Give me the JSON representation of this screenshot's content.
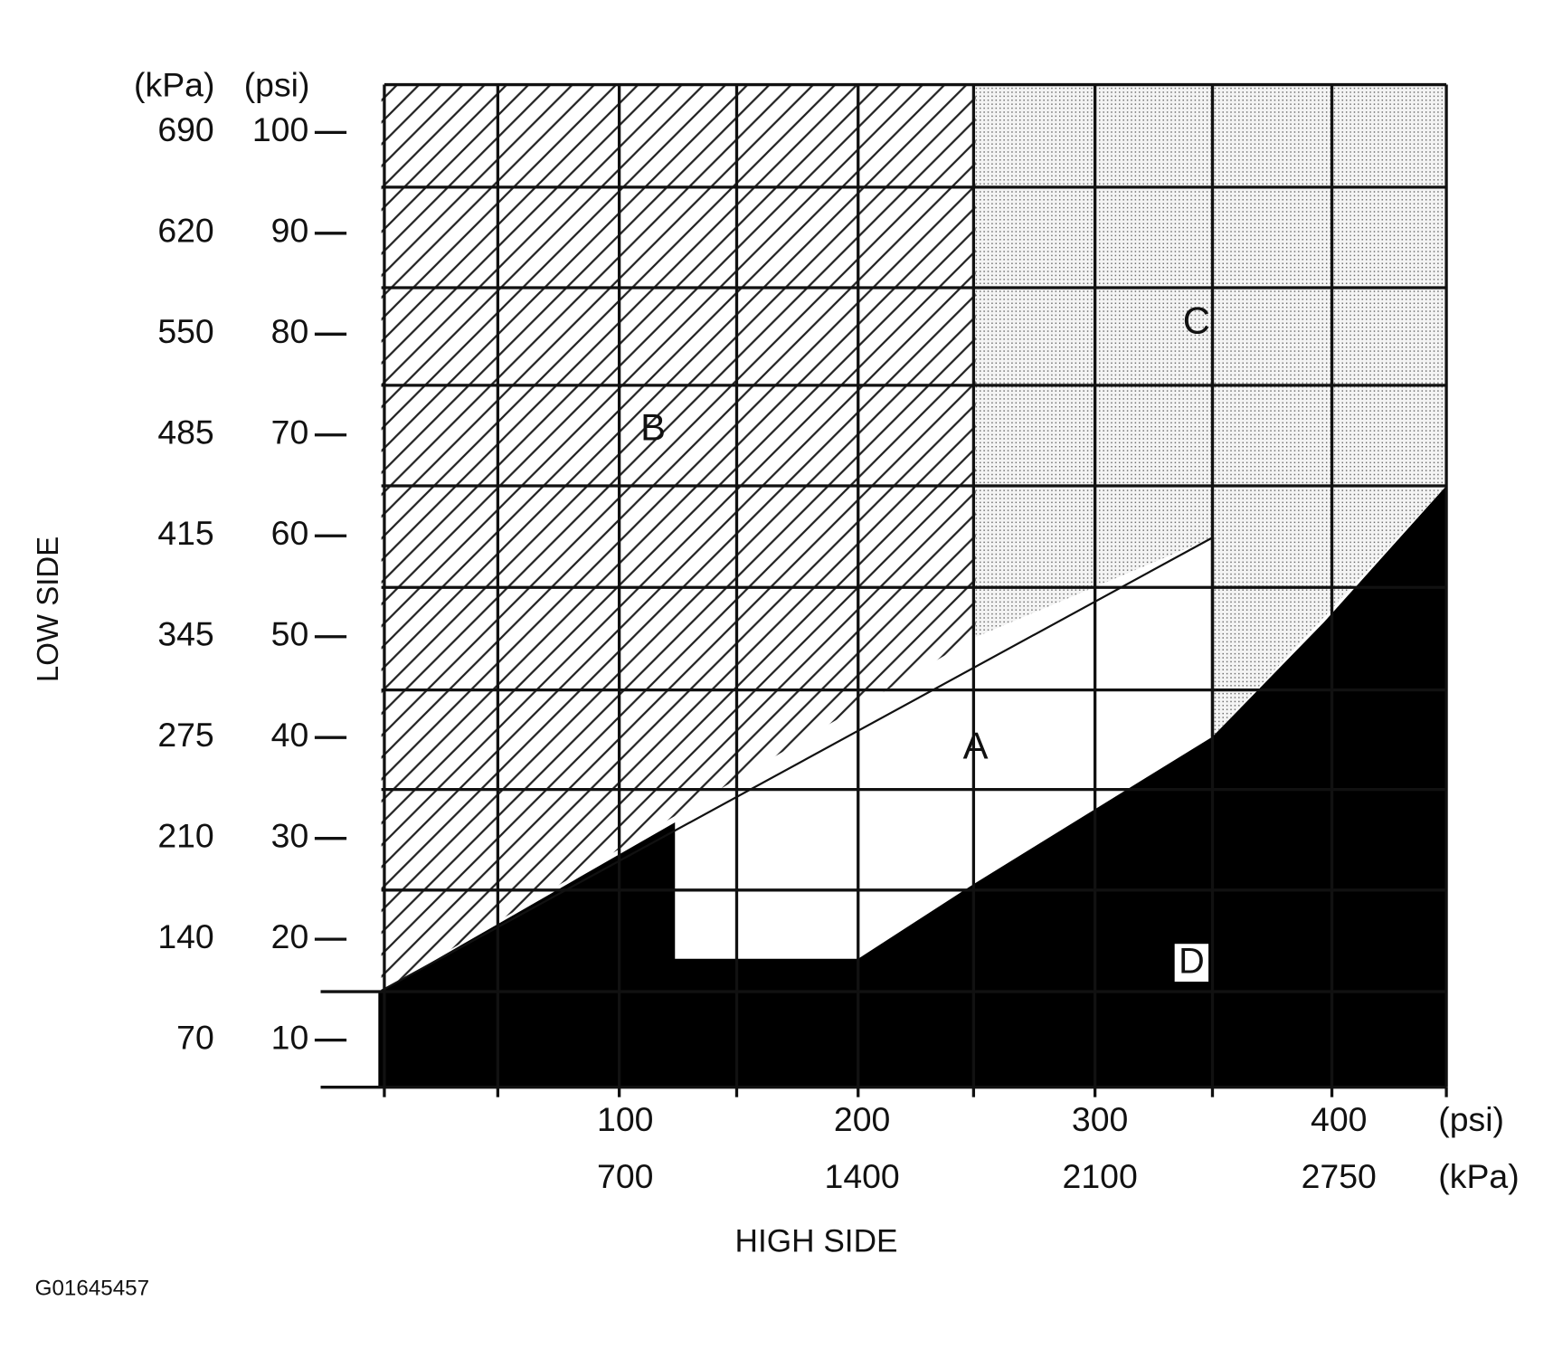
{
  "y_axis": {
    "title": "LOW SIDE",
    "unit_labels": [
      "(kPa)",
      "(psi)"
    ],
    "ticks": [
      {
        "kpa": "690",
        "psi": "100"
      },
      {
        "kpa": "620",
        "psi": "90"
      },
      {
        "kpa": "550",
        "psi": "80"
      },
      {
        "kpa": "485",
        "psi": "70"
      },
      {
        "kpa": "415",
        "psi": "60"
      },
      {
        "kpa": "345",
        "psi": "50"
      },
      {
        "kpa": "275",
        "psi": "40"
      },
      {
        "kpa": "210",
        "psi": "30"
      },
      {
        "kpa": "140",
        "psi": "20"
      },
      {
        "kpa": "70",
        "psi": "10"
      }
    ]
  },
  "x_axis": {
    "title": "HIGH SIDE",
    "unit_labels": [
      "(psi)",
      "(kPa)"
    ],
    "ticks": [
      {
        "psi": "100",
        "kpa": "700"
      },
      {
        "psi": "200",
        "kpa": "1400"
      },
      {
        "psi": "300",
        "kpa": "2100"
      },
      {
        "psi": "400",
        "kpa": "2750"
      }
    ]
  },
  "regions": [
    "A",
    "B",
    "C",
    "D"
  ],
  "figure_id": "G01645457"
}
